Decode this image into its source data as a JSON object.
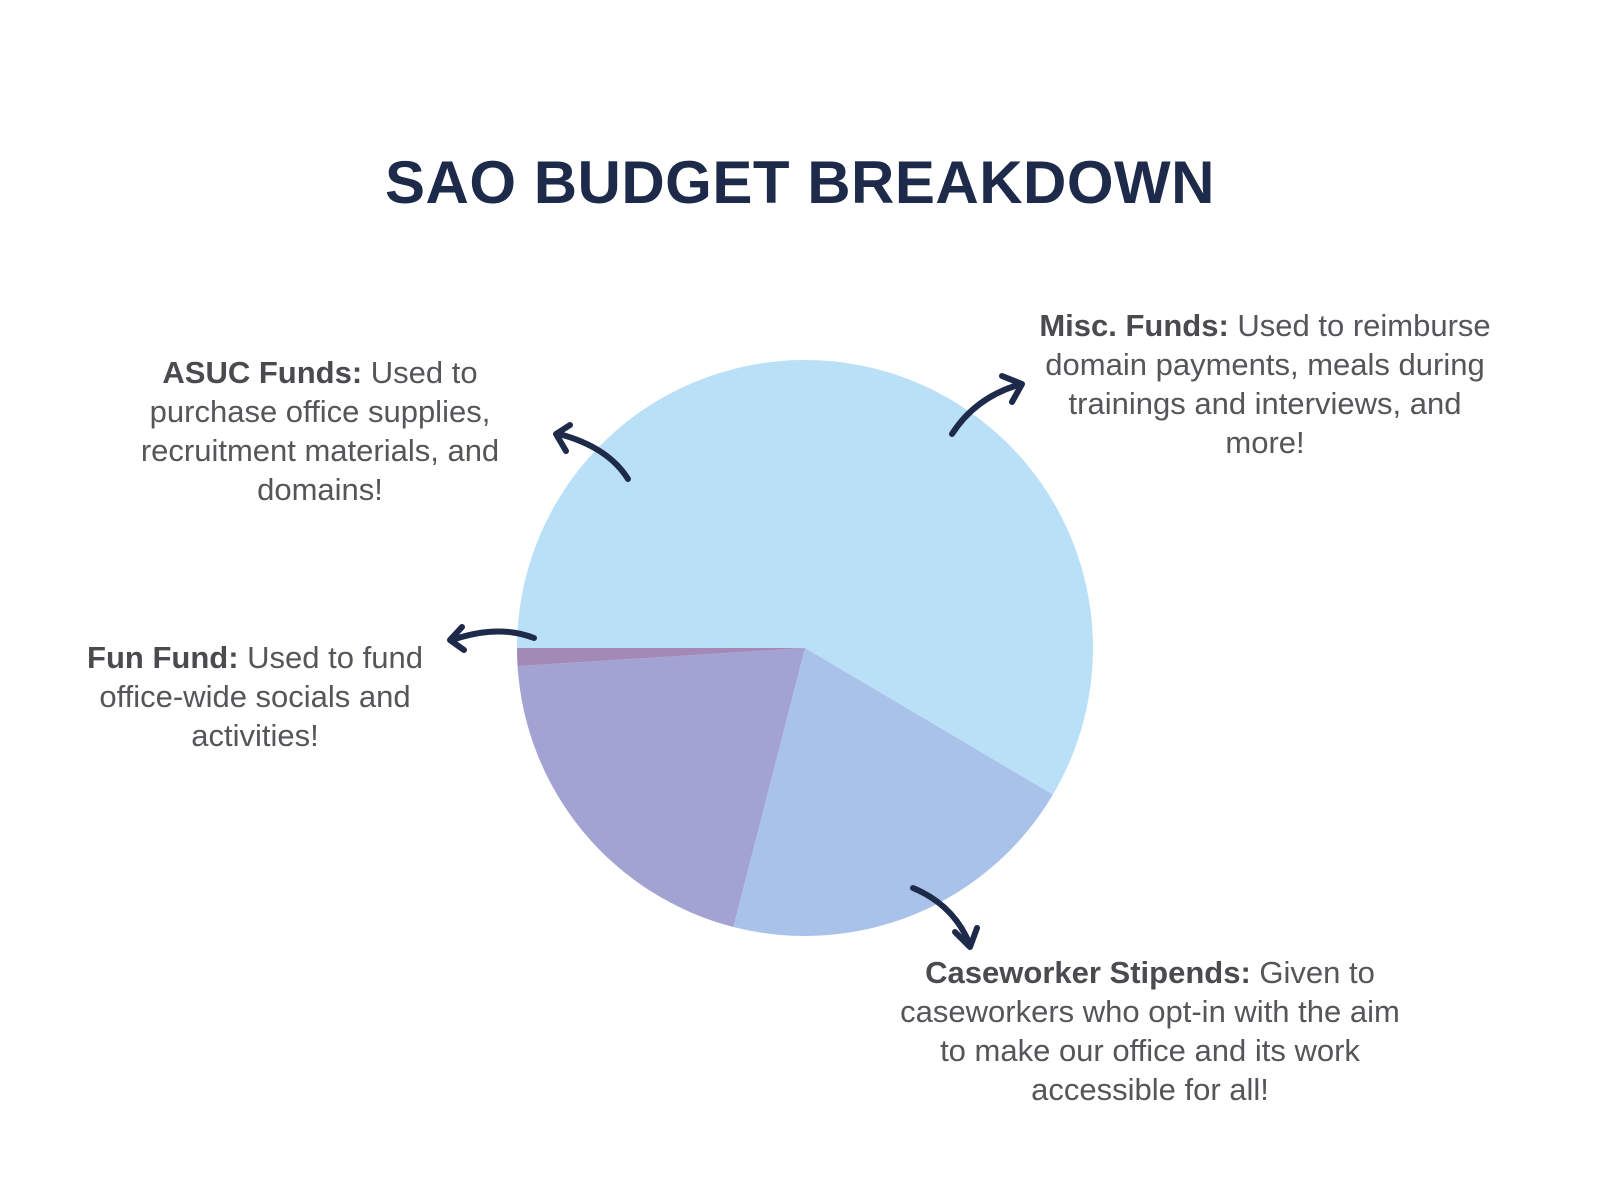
{
  "title": "SAO BUDGET BREAKDOWN",
  "colors": {
    "title": "#1e2a4a",
    "arrow": "#1e2a4a",
    "text": "#55555a"
  },
  "notes": {
    "misc": {
      "label": "Misc. Funds:",
      "text": " Used to reimburse domain payments, meals during trainings and interviews, and more!"
    },
    "asuc": {
      "label": "ASUC Funds:",
      "text": " Used to purchase office supplies, recruitment materials, and domains!"
    },
    "fun": {
      "label": "Fun Fund:",
      "text": " Used to fund office-wide socials and activities!"
    },
    "caseworker": {
      "label": "Caseworker Stipends:",
      "text": " Given to caseworkers who opt-in with the aim to make our office and its work accessible for all!"
    }
  },
  "chart_data": {
    "type": "pie",
    "title": "SAO BUDGET BREAKDOWN",
    "legend": "none",
    "categories": [
      "Caseworker Stipends",
      "Misc. Funds",
      "ASUC Funds",
      "Fun Fund"
    ],
    "values": [
      58.5,
      20.5,
      20.0,
      1.0
    ],
    "colors": [
      "#bae0f8",
      "#a9c2ea",
      "#a3a3d3",
      "#a389b6"
    ]
  }
}
